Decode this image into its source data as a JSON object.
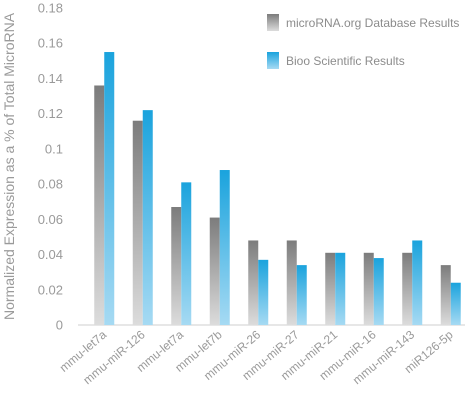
{
  "chart_data": {
    "type": "bar",
    "title": "",
    "xlabel": "",
    "ylabel": "Normalized Expression as a % of Total MicroRNA",
    "ylim": [
      0,
      0.18
    ],
    "yticks": [
      "0",
      "0.02",
      "0.04",
      "0.06",
      "0.08",
      "0.1",
      "0.12",
      "0.14",
      "0.16",
      "0.18"
    ],
    "yticks_values": [
      0,
      0.02,
      0.04,
      0.06,
      0.08,
      0.1,
      0.12,
      0.14,
      0.16,
      0.18
    ],
    "grid": false,
    "legend_position": "top-right",
    "categories": [
      "mmu-let7a",
      "mmu-miR-126",
      "mmu-let7a",
      "mmu-let7b",
      "mmu-miR-26",
      "mmu-miR-27",
      "mmu-miR-21",
      "mmu-miR-16",
      "mmu-miR-143",
      "miR126-5p"
    ],
    "series": [
      {
        "name": "microRNA.org Database Results",
        "color_top": "#7c7c7c",
        "color_bottom": "#dcdcdc",
        "values": [
          0.136,
          0.116,
          0.067,
          0.061,
          0.048,
          0.048,
          0.041,
          0.041,
          0.041,
          0.034
        ]
      },
      {
        "name": "Bioo Scientific Results",
        "color_top": "#1aa3dd",
        "color_bottom": "#a6daf3",
        "values": [
          0.155,
          0.122,
          0.081,
          0.088,
          0.037,
          0.034,
          0.041,
          0.038,
          0.048,
          0.024
        ]
      }
    ]
  }
}
